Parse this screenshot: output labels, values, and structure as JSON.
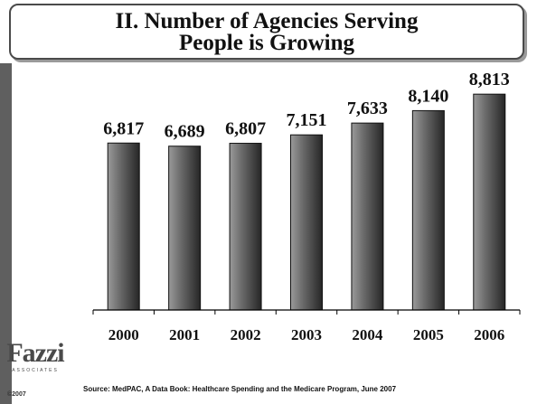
{
  "title_line1": "II. Number of Agencies Serving",
  "title_line2": "People is Growing",
  "source": "Source: MedPAC, A Data Book: Healthcare Spending and the Medicare Program, June 2007",
  "logo": {
    "name": "Fazzi",
    "subtitle": "ASSOCIATES"
  },
  "copyright": "©2007",
  "colors": {
    "bar_light": "#8a8a8a",
    "bar_dark": "#2a2a2a",
    "band": "#5f5f5f"
  },
  "chart_data": {
    "type": "bar",
    "categories": [
      "2000",
      "2001",
      "2002",
      "2003",
      "2004",
      "2005",
      "2006"
    ],
    "values": [
      6817,
      6689,
      6807,
      7151,
      7633,
      8140,
      8813
    ],
    "labels": [
      "6,817",
      "6,689",
      "6,807",
      "7,151",
      "7,633",
      "8,140",
      "8,813"
    ],
    "title": "II. Number of Agencies Serving People is Growing",
    "xlabel": "",
    "ylabel": "",
    "ylim": [
      0,
      10000
    ],
    "grid": false,
    "legend": "none"
  }
}
